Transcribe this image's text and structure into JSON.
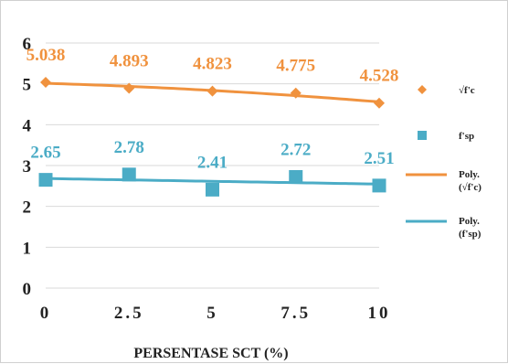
{
  "chart_data": {
    "type": "line",
    "title": "",
    "xlabel": "PERSENTASE SCT (%)",
    "ylabel": "",
    "x": [
      "0",
      "2.5",
      "5",
      "7.5",
      "10"
    ],
    "ylim": [
      0,
      6
    ],
    "yticks": [
      "0",
      "1",
      "2",
      "3",
      "4",
      "5",
      "6"
    ],
    "grid": "horizontal",
    "legend_position": "right",
    "series": [
      {
        "name": "√f'c",
        "marker": "diamond",
        "color": "#f0923e",
        "values": [
          5.038,
          4.893,
          4.823,
          4.775,
          4.528
        ],
        "labels": [
          "5.038",
          "4.893",
          "4.823",
          "4.775",
          "4.528"
        ]
      },
      {
        "name": "f'sp",
        "marker": "square",
        "color": "#4bacc6",
        "values": [
          2.65,
          2.78,
          2.41,
          2.72,
          2.51
        ],
        "labels": [
          "2.65",
          "2.78",
          "2.41",
          "2.72",
          "2.51"
        ]
      }
    ],
    "trendlines": [
      {
        "name_line1": "Poly.",
        "name_line2": "(√f'c)",
        "color": "#f0923e",
        "of_series": 0
      },
      {
        "name_line1": "Poly.",
        "name_line2": "(f'sp)",
        "color": "#4bacc6",
        "of_series": 1
      }
    ]
  }
}
